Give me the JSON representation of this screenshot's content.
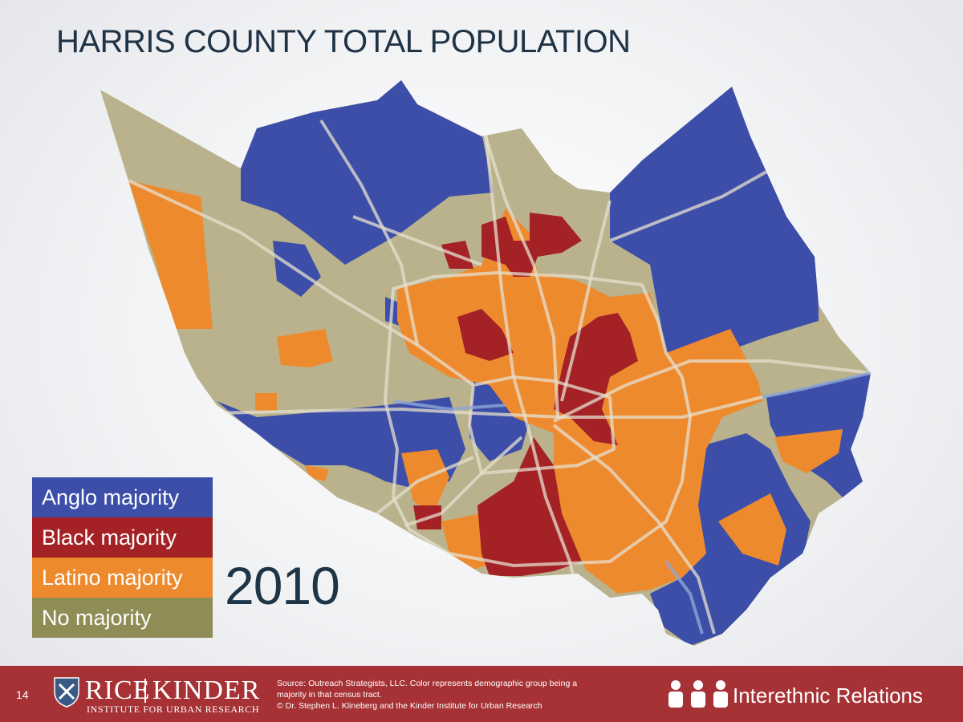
{
  "title": "HARRIS COUNTY TOTAL POPULATION",
  "year": "2010",
  "legend": [
    {
      "label": "Anglo majority",
      "color": "#3c4ea8"
    },
    {
      "label": "Black majority",
      "color": "#a42226"
    },
    {
      "label": "Latino majority",
      "color": "#ee8a2e"
    },
    {
      "label": "No majority",
      "color": "#8f8c55"
    }
  ],
  "map_colors": {
    "anglo": "#3c4ea8",
    "black": "#a42226",
    "latino": "#ee8a2e",
    "none": "#b9b28c",
    "roads": "#e6dfcf",
    "water": "#8fa6d6"
  },
  "footer": {
    "page_number": "14",
    "logo_rice": "RICE",
    "logo_kinder": "KINDER",
    "logo_sub": "INSTITUTE FOR URBAN RESEARCH",
    "source_lines": [
      "Source: Outreach Strategists, LLC. Color represents demographic group being a",
      "majority in that census tract.",
      "© Dr. Stephen L. Klineberg and the Kinder Institute for Urban Research"
    ],
    "series_label": "Interethnic Relations",
    "accent_color": "#a63236"
  }
}
